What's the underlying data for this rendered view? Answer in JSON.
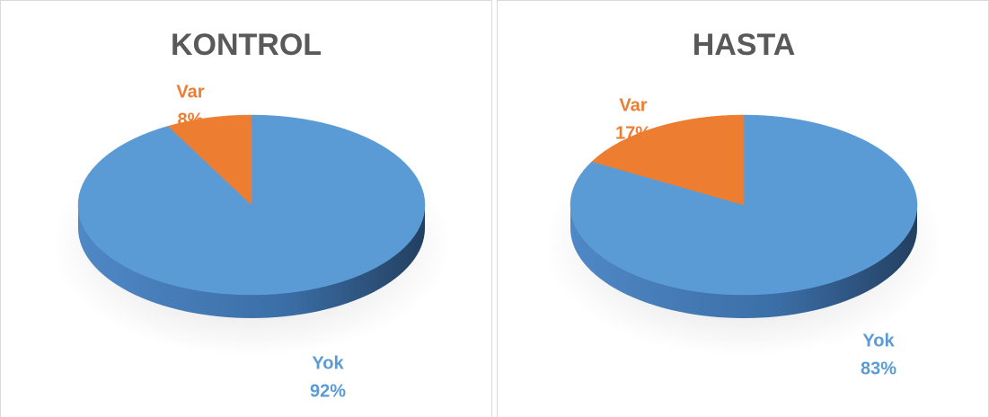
{
  "chart_data": [
    {
      "type": "pie",
      "title": "KONTROL",
      "categories": [
        "Yok",
        "Var"
      ],
      "values": [
        92,
        8
      ],
      "value_labels": [
        "92%",
        "8%"
      ],
      "colors": [
        "#5b9bd5",
        "#ed7d31"
      ]
    },
    {
      "type": "pie",
      "title": "HASTA",
      "categories": [
        "Yok",
        "Var"
      ],
      "values": [
        83,
        17
      ],
      "value_labels": [
        "83%",
        "17%"
      ],
      "colors": [
        "#5b9bd5",
        "#ed7d31"
      ]
    }
  ]
}
